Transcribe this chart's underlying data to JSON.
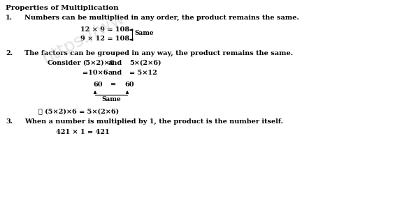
{
  "title": "Properties of Multiplication",
  "background_color": "#ffffff",
  "items": [
    {
      "num": "1.",
      "text": "Numbers can be multiplied in any order, the product remains the same."
    },
    {
      "num": "2.",
      "text": "The factors can be grouped in any way, the product remains the same."
    },
    {
      "num": "3.",
      "text": "When a number is multiplied by 1, the product is the number itself."
    }
  ],
  "eq1a": "12 × 9 = 108",
  "eq1b": "9 × 12 = 108",
  "same_label": "Same",
  "consider": "Consider",
  "expr1": "(5×2)×6",
  "and_word": "and",
  "expr2": "5×(2×6)",
  "step1": "=10×6",
  "step2": "= 5×12",
  "result": "60",
  "equals": "=",
  "therefore": "∴ (5×2)×6 = 5×(2×6)",
  "final_eq": "421 × 1 = 421"
}
